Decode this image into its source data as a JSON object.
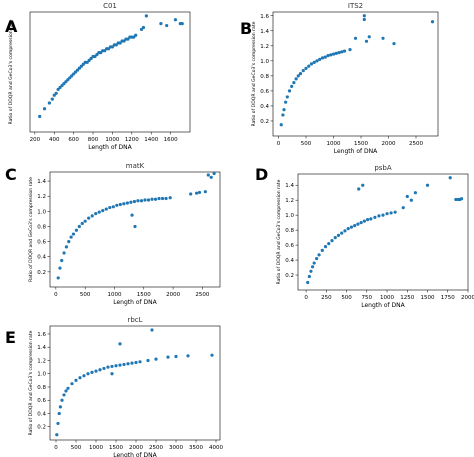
{
  "chart_data": [
    {
      "panel_letter": "A",
      "type": "scatter",
      "title": "C01",
      "xlabel": "Length of DNA",
      "ylabel": "Ratio of DDQR and GeCo3's compression rate",
      "xlim": [
        150,
        1800
      ],
      "ylim": [
        0.6,
        1.22
      ],
      "xticks": [
        200,
        400,
        600,
        800,
        1000,
        1200,
        1400,
        1600
      ],
      "xtick_labels": [
        "200",
        "400",
        "600",
        "800",
        "1000",
        "1200",
        "1400",
        "1600"
      ],
      "yticks": [],
      "ytick_labels": [],
      "x": [
        250,
        300,
        350,
        380,
        400,
        420,
        440,
        460,
        480,
        500,
        520,
        540,
        560,
        580,
        600,
        620,
        640,
        660,
        680,
        700,
        720,
        740,
        760,
        780,
        800,
        820,
        840,
        860,
        880,
        900,
        920,
        940,
        960,
        980,
        1000,
        1020,
        1040,
        1060,
        1080,
        1100,
        1120,
        1140,
        1160,
        1180,
        1200,
        1220,
        1240,
        1300,
        1320,
        1350,
        1650,
        1700,
        1720,
        1500,
        1560
      ],
      "y": [
        0.68,
        0.72,
        0.75,
        0.77,
        0.79,
        0.8,
        0.82,
        0.83,
        0.84,
        0.85,
        0.86,
        0.87,
        0.88,
        0.89,
        0.9,
        0.91,
        0.92,
        0.93,
        0.94,
        0.95,
        0.96,
        0.96,
        0.97,
        0.98,
        0.99,
        0.99,
        1.0,
        1.01,
        1.01,
        1.02,
        1.02,
        1.03,
        1.03,
        1.04,
        1.04,
        1.05,
        1.05,
        1.06,
        1.06,
        1.07,
        1.07,
        1.08,
        1.08,
        1.09,
        1.09,
        1.09,
        1.1,
        1.13,
        1.14,
        1.2,
        1.18,
        1.16,
        1.16,
        1.16,
        1.15
      ],
      "color": "#1f77b4"
    },
    {
      "panel_letter": "B",
      "type": "scatter",
      "title": "ITS2",
      "xlabel": "Length of DNA",
      "ylabel": "Ratio of DDQR and GeCo3's compression rate",
      "xlim": [
        -100,
        2900
      ],
      "ylim": [
        0.0,
        1.65
      ],
      "xticks": [
        0,
        500,
        1000,
        1500,
        2000,
        2500
      ],
      "xtick_labels": [
        "0",
        "500",
        "1000",
        "1500",
        "2000",
        "2500"
      ],
      "yticks": [
        0.2,
        0.4,
        0.6,
        0.8,
        1.0,
        1.2,
        1.4,
        1.6
      ],
      "ytick_labels": [
        "0.2",
        "0.4",
        "0.6",
        "0.8",
        "1.0",
        "1.2",
        "1.4",
        "1.6"
      ],
      "x": [
        50,
        80,
        100,
        130,
        160,
        200,
        240,
        280,
        320,
        360,
        400,
        450,
        500,
        550,
        600,
        650,
        700,
        750,
        800,
        850,
        900,
        950,
        1000,
        1050,
        1100,
        1150,
        1200,
        1300,
        1400,
        1600,
        1650,
        1900,
        2100,
        2800,
        1560,
        1560
      ],
      "y": [
        0.15,
        0.28,
        0.35,
        0.45,
        0.52,
        0.6,
        0.66,
        0.71,
        0.76,
        0.8,
        0.83,
        0.87,
        0.9,
        0.93,
        0.96,
        0.98,
        1.0,
        1.02,
        1.04,
        1.05,
        1.07,
        1.08,
        1.09,
        1.1,
        1.11,
        1.12,
        1.13,
        1.15,
        1.3,
        1.26,
        1.32,
        1.3,
        1.23,
        1.52,
        1.6,
        1.55
      ],
      "color": "#1f77b4"
    },
    {
      "panel_letter": "C",
      "type": "scatter",
      "title": "matK",
      "xlabel": "Length of DNA",
      "ylabel": "Ratio of DDQR and GeCo3's compression rate",
      "xlim": [
        -100,
        2800
      ],
      "ylim": [
        0.0,
        1.52
      ],
      "xticks": [
        0,
        500,
        1000,
        1500,
        2000,
        2500
      ],
      "xtick_labels": [
        "0",
        "500",
        "1000",
        "1500",
        "2000",
        "2500"
      ],
      "yticks": [
        0.2,
        0.4,
        0.6,
        0.8,
        1.0,
        1.2,
        1.4
      ],
      "ytick_labels": [
        "0.2",
        "0.4",
        "0.6",
        "0.8",
        "1.0",
        "1.2",
        "1.4"
      ],
      "x": [
        40,
        70,
        100,
        140,
        180,
        220,
        260,
        300,
        350,
        400,
        450,
        500,
        560,
        620,
        680,
        740,
        800,
        860,
        920,
        980,
        1040,
        1100,
        1160,
        1220,
        1280,
        1340,
        1400,
        1460,
        1520,
        1580,
        1640,
        1700,
        1760,
        1820,
        1880,
        1950,
        2300,
        2400,
        2450,
        2550,
        2600,
        2650,
        2700,
        1300,
        1350
      ],
      "y": [
        0.12,
        0.25,
        0.35,
        0.45,
        0.53,
        0.6,
        0.66,
        0.7,
        0.75,
        0.8,
        0.84,
        0.87,
        0.91,
        0.94,
        0.97,
        0.99,
        1.01,
        1.03,
        1.05,
        1.06,
        1.08,
        1.09,
        1.1,
        1.11,
        1.12,
        1.13,
        1.14,
        1.14,
        1.15,
        1.15,
        1.16,
        1.16,
        1.17,
        1.17,
        1.17,
        1.18,
        1.23,
        1.24,
        1.25,
        1.26,
        1.48,
        1.45,
        1.5,
        0.95,
        0.8
      ],
      "color": "#1f77b4"
    },
    {
      "panel_letter": "D",
      "type": "scatter",
      "title": "psbA",
      "xlabel": "Length of DNA",
      "ylabel": "Ratio of DDQR and GeCo3's compression rate",
      "xlim": [
        -100,
        2000
      ],
      "ylim": [
        0.0,
        1.55
      ],
      "xticks": [
        0,
        250,
        500,
        750,
        1000,
        1250,
        1500,
        1750,
        2000
      ],
      "xtick_labels": [
        "0",
        "250",
        "500",
        "750",
        "1000",
        "1250",
        "1500",
        "1750",
        "2000"
      ],
      "yticks": [
        0.2,
        0.4,
        0.6,
        0.8,
        1.0,
        1.2,
        1.4
      ],
      "ytick_labels": [
        "0.2",
        "0.4",
        "0.6",
        "0.8",
        "1.0",
        "1.2",
        "1.4"
      ],
      "x": [
        20,
        40,
        60,
        80,
        100,
        130,
        160,
        200,
        240,
        280,
        320,
        360,
        400,
        440,
        480,
        520,
        560,
        600,
        640,
        680,
        720,
        760,
        800,
        850,
        900,
        950,
        1000,
        1050,
        1100,
        1200,
        1250,
        1300,
        1350,
        1500,
        1780,
        1850,
        1880,
        1900,
        1920,
        650,
        700
      ],
      "y": [
        0.1,
        0.18,
        0.25,
        0.31,
        0.36,
        0.42,
        0.47,
        0.53,
        0.58,
        0.62,
        0.66,
        0.7,
        0.73,
        0.76,
        0.79,
        0.82,
        0.84,
        0.86,
        0.88,
        0.9,
        0.92,
        0.94,
        0.95,
        0.97,
        0.99,
        1.0,
        1.02,
        1.03,
        1.04,
        1.1,
        1.25,
        1.2,
        1.3,
        1.4,
        1.5,
        1.21,
        1.21,
        1.21,
        1.22,
        1.35,
        1.4
      ],
      "color": "#1f77b4"
    },
    {
      "panel_letter": "E",
      "type": "scatter",
      "title": "rbcL",
      "xlabel": "Length of DNA",
      "ylabel": "Ratio of DDQR and GeCo3's compression rate",
      "xlim": [
        -150,
        4100
      ],
      "ylim": [
        0.0,
        1.72
      ],
      "xticks": [
        0,
        500,
        1000,
        1500,
        2000,
        2500,
        3000,
        3500,
        4000
      ],
      "xtick_labels": [
        "0",
        "500",
        "1000",
        "1500",
        "2000",
        "2500",
        "3000",
        "3500",
        "4000"
      ],
      "yticks": [
        0.2,
        0.4,
        0.6,
        0.8,
        1.0,
        1.2,
        1.4,
        1.6
      ],
      "ytick_labels": [
        "0.2",
        "0.4",
        "0.6",
        "0.8",
        "1.0",
        "1.2",
        "1.4",
        "1.6"
      ],
      "x": [
        20,
        50,
        80,
        110,
        150,
        200,
        250,
        300,
        400,
        500,
        600,
        700,
        800,
        900,
        1000,
        1100,
        1200,
        1300,
        1400,
        1500,
        1600,
        1700,
        1800,
        1900,
        2000,
        2100,
        2300,
        2500,
        2800,
        3000,
        3300,
        3900,
        2400,
        1600,
        1400
      ],
      "y": [
        0.08,
        0.25,
        0.4,
        0.5,
        0.6,
        0.68,
        0.74,
        0.78,
        0.85,
        0.9,
        0.94,
        0.97,
        1.0,
        1.02,
        1.04,
        1.06,
        1.08,
        1.1,
        1.11,
        1.12,
        1.13,
        1.14,
        1.15,
        1.16,
        1.17,
        1.18,
        1.2,
        1.22,
        1.25,
        1.26,
        1.27,
        1.28,
        1.66,
        1.45,
        1.0
      ],
      "color": "#1f77b4"
    }
  ]
}
